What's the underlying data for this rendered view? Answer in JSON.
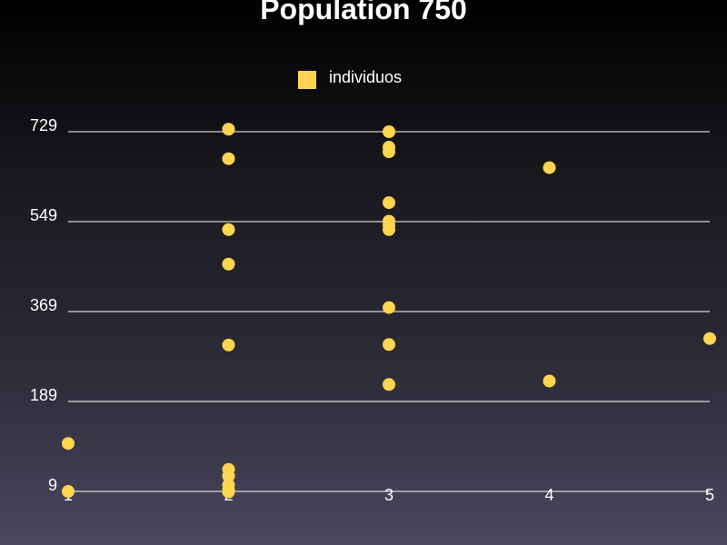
{
  "chart_data": {
    "type": "scatter",
    "title": "Population 750",
    "xlabel": "",
    "ylabel": "",
    "legend": {
      "placement": "top-center",
      "entries": [
        "individuos"
      ]
    },
    "series": [
      {
        "name": "individuos",
        "color": "#ffd54f",
        "points": [
          {
            "x": 1,
            "y": 9
          },
          {
            "x": 1,
            "y": 105
          },
          {
            "x": 2,
            "y": 8
          },
          {
            "x": 2,
            "y": 12
          },
          {
            "x": 2,
            "y": 22
          },
          {
            "x": 2,
            "y": 40
          },
          {
            "x": 2,
            "y": 53
          },
          {
            "x": 2,
            "y": 302
          },
          {
            "x": 2,
            "y": 464
          },
          {
            "x": 2,
            "y": 533
          },
          {
            "x": 2,
            "y": 675
          },
          {
            "x": 2,
            "y": 734
          },
          {
            "x": 3,
            "y": 223
          },
          {
            "x": 3,
            "y": 303
          },
          {
            "x": 3,
            "y": 377
          },
          {
            "x": 3,
            "y": 533
          },
          {
            "x": 3,
            "y": 542
          },
          {
            "x": 3,
            "y": 550
          },
          {
            "x": 3,
            "y": 587
          },
          {
            "x": 3,
            "y": 689
          },
          {
            "x": 3,
            "y": 698
          },
          {
            "x": 3,
            "y": 729
          },
          {
            "x": 4,
            "y": 230
          },
          {
            "x": 4,
            "y": 657
          },
          {
            "x": 5,
            "y": 315
          }
        ]
      }
    ],
    "x_ticks": [
      "1",
      "2",
      "3",
      "4",
      "5"
    ],
    "y_ticks": [
      "9",
      "189",
      "369",
      "549",
      "729"
    ],
    "xlim": [
      1,
      5
    ],
    "ylim": [
      9,
      729
    ],
    "grid": "horizontal",
    "colors": {
      "grid": "#ffffff",
      "text": "#ffffff",
      "marker": "#ffd54f"
    }
  }
}
